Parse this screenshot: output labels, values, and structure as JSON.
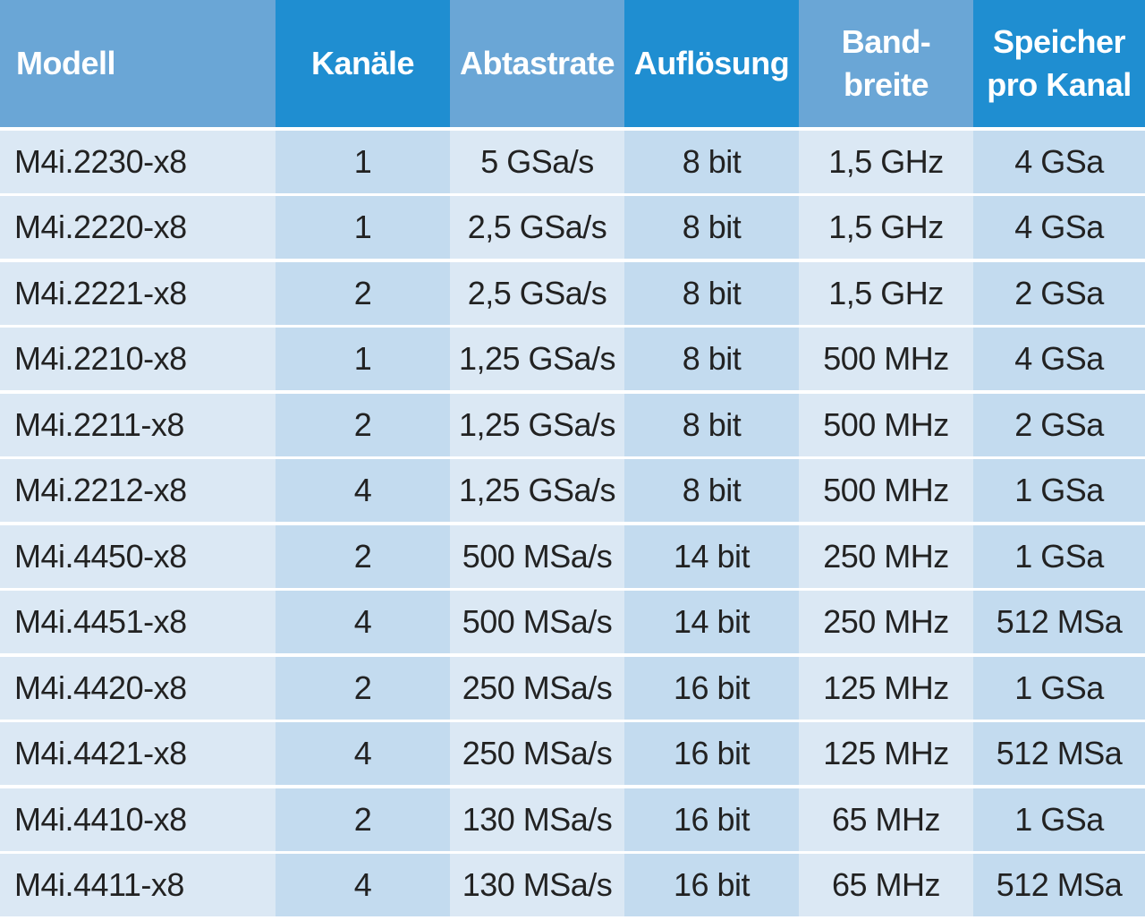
{
  "header": {
    "columns": [
      "Modell",
      "Kanäle",
      "Abtastrate",
      "Auflösung",
      "Band-\nbreite",
      "Speicher\npro Kanal"
    ]
  },
  "rows": [
    [
      "M4i.2230-x8",
      "1",
      "5 GSa/s",
      "8 bit",
      "1,5 GHz",
      "4 GSa"
    ],
    [
      "M4i.2220-x8",
      "1",
      "2,5 GSa/s",
      "8 bit",
      "1,5 GHz",
      "4 GSa"
    ],
    [
      "M4i.2221-x8",
      "2",
      "2,5 GSa/s",
      "8 bit",
      "1,5 GHz",
      "2 GSa"
    ],
    [
      "M4i.2210-x8",
      "1",
      "1,25 GSa/s",
      "8 bit",
      "500 MHz",
      "4 GSa"
    ],
    [
      "M4i.2211-x8",
      "2",
      "1,25 GSa/s",
      "8 bit",
      "500 MHz",
      "2 GSa"
    ],
    [
      "M4i.2212-x8",
      "4",
      "1,25 GSa/s",
      "8 bit",
      "500 MHz",
      "1 GSa"
    ],
    [
      "M4i.4450-x8",
      "2",
      "500 MSa/s",
      "14 bit",
      "250 MHz",
      "1 GSa"
    ],
    [
      "M4i.4451-x8",
      "4",
      "500 MSa/s",
      "14 bit",
      "250 MHz",
      "512 MSa"
    ],
    [
      "M4i.4420-x8",
      "2",
      "250 MSa/s",
      "16 bit",
      "125 MHz",
      "1 GSa"
    ],
    [
      "M4i.4421-x8",
      "4",
      "250 MSa/s",
      "16 bit",
      "125 MHz",
      "512 MSa"
    ],
    [
      "M4i.4410-x8",
      "2",
      "130 MSa/s",
      "16 bit",
      "65 MHz",
      "1 GSa"
    ],
    [
      "M4i.4411-x8",
      "4",
      "130 MSa/s",
      "16 bit",
      "65 MHz",
      "512 MSa"
    ]
  ],
  "colors": {
    "header_light": "#6aa6d6",
    "header_dark": "#1f8ed1",
    "row_light": "#dbe8f4",
    "row_dark": "#c3dbef",
    "header_text": "#ffffff",
    "body_text": "#222222"
  }
}
